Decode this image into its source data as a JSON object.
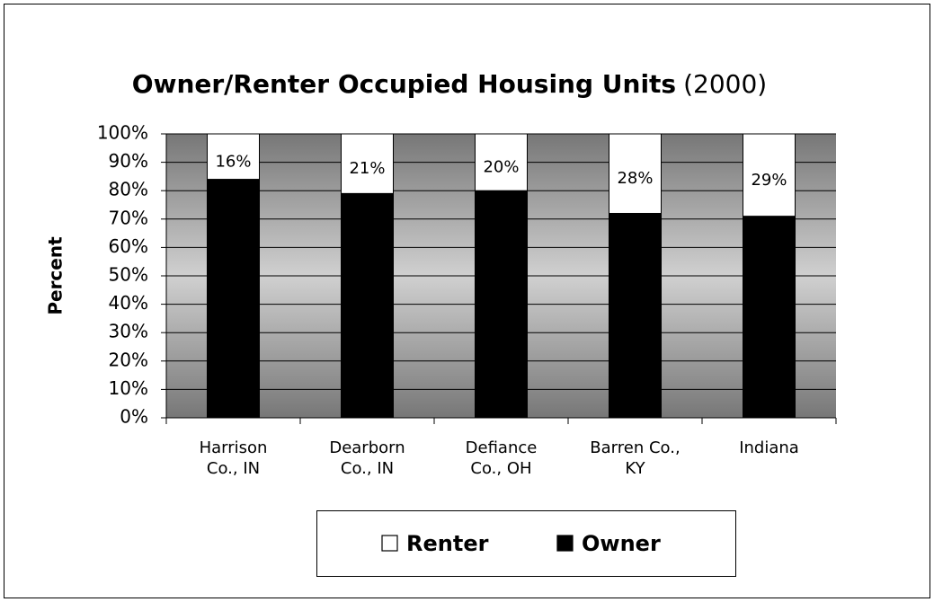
{
  "chart_data": {
    "type": "stacked_bar",
    "title": "Owner/Renter Occupied Housing Units",
    "title_year": "(2000)",
    "y_label": "Percent",
    "categories": [
      "Harrison Co., IN",
      "Dearborn Co., IN",
      "Defiance Co., OH",
      "Barren Co., KY",
      "Indiana"
    ],
    "series": [
      {
        "name": "Renter",
        "color": "#ffffff",
        "values": [
          16,
          21,
          20,
          28,
          29
        ],
        "value_labels": [
          "16%",
          "21%",
          "20%",
          "28%",
          "29%"
        ]
      },
      {
        "name": "Owner",
        "color": "#000000",
        "values": [
          84,
          79,
          80,
          72,
          71
        ]
      }
    ],
    "ylim": [
      0,
      100
    ],
    "yticks": [
      {
        "value": 0,
        "label": "0%"
      },
      {
        "value": 10,
        "label": "10%"
      },
      {
        "value": 20,
        "label": "20%"
      },
      {
        "value": 30,
        "label": "30%"
      },
      {
        "value": 40,
        "label": "40%"
      },
      {
        "value": 50,
        "label": "50%"
      },
      {
        "value": 60,
        "label": "60%"
      },
      {
        "value": 70,
        "label": "70%"
      },
      {
        "value": 80,
        "label": "80%"
      },
      {
        "value": 90,
        "label": "90%"
      },
      {
        "value": 100,
        "label": "100%"
      }
    ],
    "grid": true,
    "legend": "bottom"
  }
}
